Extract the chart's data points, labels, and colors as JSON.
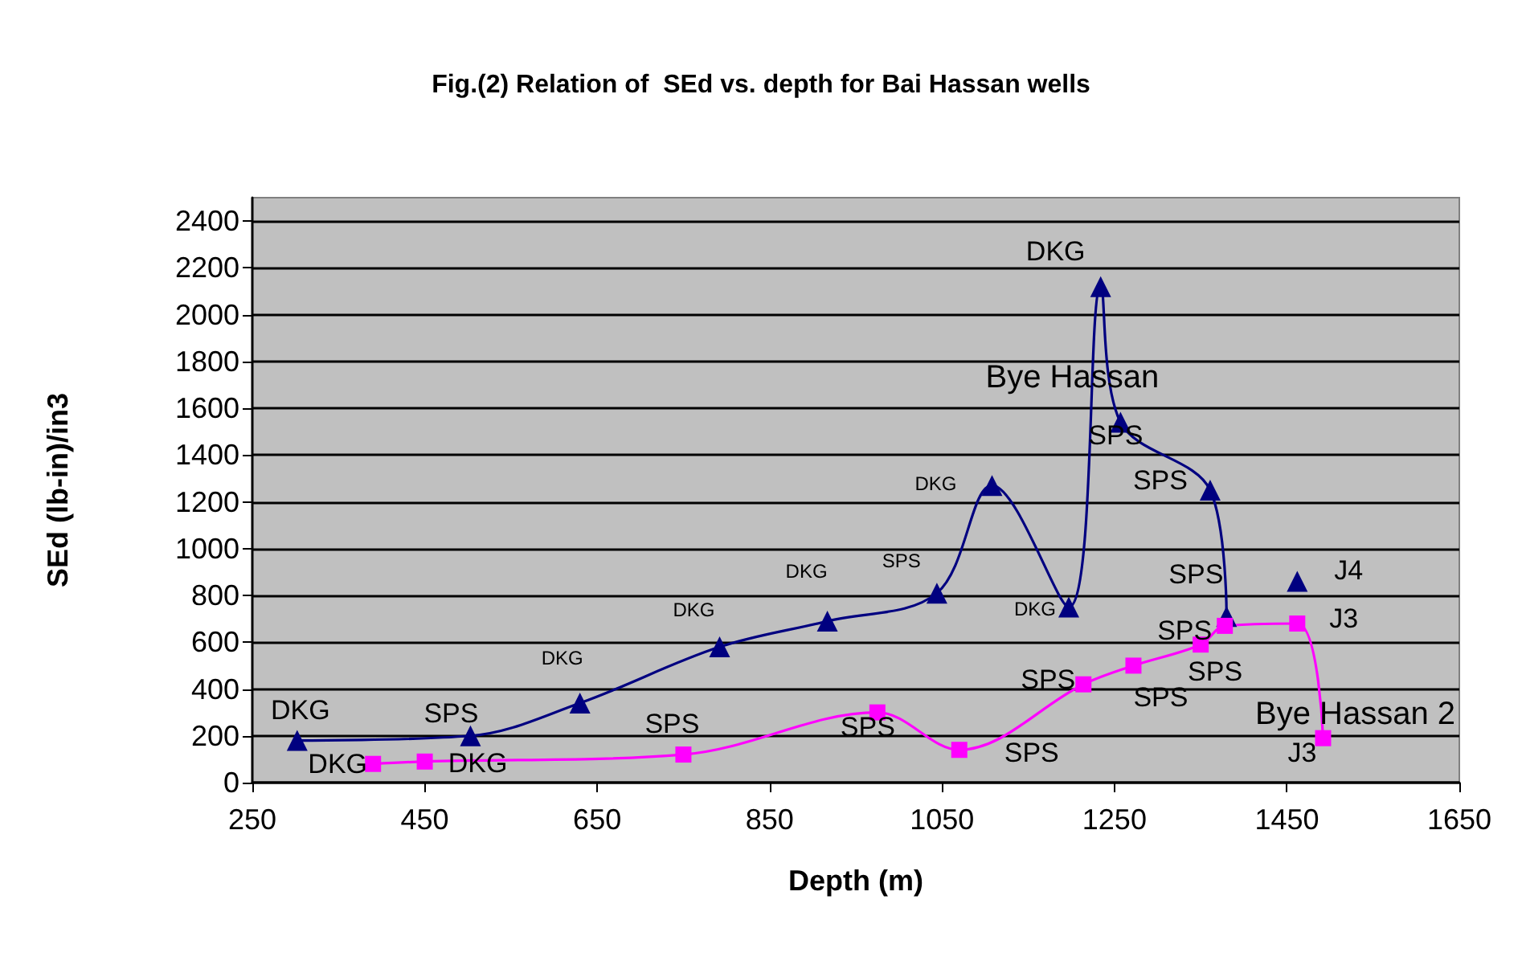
{
  "chart_data": {
    "type": "line",
    "title": "Fig.(2) Relation of  SEd vs. depth for Bai Hassan wells",
    "xlabel": "Depth (m)",
    "ylabel": "SEd (lb-in)/in3",
    "xlim": [
      250,
      1650
    ],
    "xticks": [
      250,
      450,
      650,
      850,
      1050,
      1250,
      1450,
      1650
    ],
    "ylim": [
      0,
      2500
    ],
    "yticks": [
      0,
      200,
      400,
      600,
      800,
      1000,
      1200,
      1400,
      1600,
      1800,
      2000,
      2200,
      2400
    ],
    "grid": "y",
    "series": [
      {
        "name": "Bye Hassan",
        "color": "#000080",
        "marker": "triangle",
        "x": [
          302,
          503,
          630,
          792,
          917,
          1044,
          1108,
          1197,
          1234,
          1257,
          1361,
          1380,
          1420,
          1462
        ],
        "values": [
          180,
          200,
          340,
          580,
          690,
          810,
          1270,
          750,
          2120,
          1540,
          1250,
          710,
          null,
          860
        ],
        "value_labels": [
          "DKG",
          "SPS",
          "DKG",
          "DKG",
          "DKG",
          "SPS",
          "DKG",
          "DKG",
          "DKG",
          "SPS",
          "SPS",
          "SPS",
          null,
          "J4"
        ]
      },
      {
        "name": "Bye Hassan 2",
        "color": "#ff00ff",
        "marker": "square",
        "x": [
          390,
          450,
          750,
          975,
          1070,
          1214,
          1272,
          1350,
          1378,
          1462,
          1492
        ],
        "values": [
          80,
          90,
          120,
          300,
          140,
          420,
          500,
          590,
          670,
          680,
          190
        ],
        "value_labels": [
          "DKG",
          "DKG",
          "SPS",
          "SPS",
          "SPS",
          "SPS",
          "SPS",
          "SPS",
          "SPS",
          "J3",
          "J3"
        ]
      }
    ]
  }
}
